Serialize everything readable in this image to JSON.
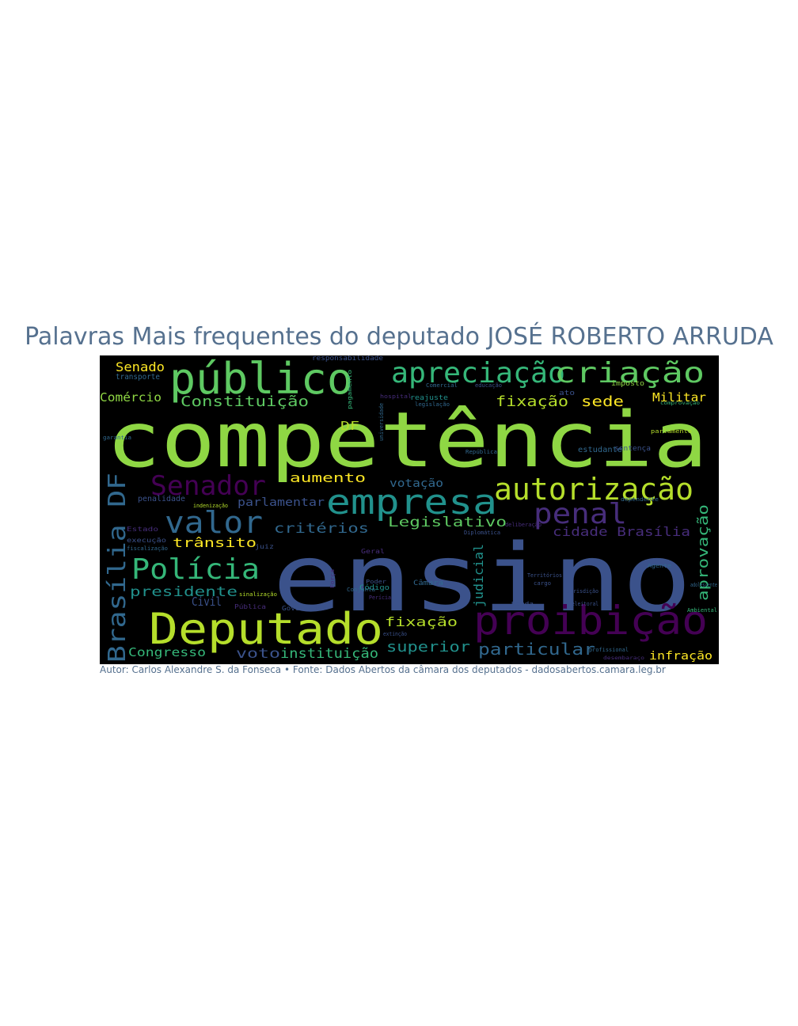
{
  "title": "Palavras Mais frequentes do deputado JOSÉ ROBERTO ARRUDA",
  "footer": "Autor: Carlos Alexandre S. da Fonseca • Fonte: Dados Abertos da câmara dos deputados - dadosabertos.camara.leg.br",
  "colors": {
    "title": "#56718f",
    "background": "#000000",
    "palette": [
      "#8fd744",
      "#b5de2b",
      "#5ec962",
      "#35b779",
      "#21918c",
      "#31688e",
      "#3b528b",
      "#472d7b",
      "#440154",
      "#fde725"
    ]
  },
  "words": [
    {
      "text": "competência",
      "color": "#8fd744"
    },
    {
      "text": "ensino",
      "color": "#3b528b"
    },
    {
      "text": "público",
      "color": "#5ec962"
    },
    {
      "text": "apreciação",
      "color": "#35b779"
    },
    {
      "text": "criação",
      "color": "#5ec962"
    },
    {
      "text": "Deputado",
      "color": "#b5de2b"
    },
    {
      "text": "proibição",
      "color": "#440154"
    },
    {
      "text": "empresa",
      "color": "#21918c"
    },
    {
      "text": "autorização",
      "color": "#b5de2b"
    },
    {
      "text": "valor",
      "color": "#31688e"
    },
    {
      "text": "penal",
      "color": "#472d7b"
    },
    {
      "text": "Polícia",
      "color": "#35b779"
    },
    {
      "text": "Senador",
      "color": "#440154"
    },
    {
      "text": "Brasília DF",
      "color": "#31688e"
    },
    {
      "text": "Senado",
      "color": "#fde725"
    },
    {
      "text": "Comércio",
      "color": "#8fd744"
    },
    {
      "text": "Constituição",
      "color": "#5ec962"
    },
    {
      "text": "DF",
      "color": "#b5de2b"
    },
    {
      "text": "fixação",
      "color": "#b5de2b"
    },
    {
      "text": "sede",
      "color": "#fde725"
    },
    {
      "text": "Militar",
      "color": "#fde725"
    },
    {
      "text": "aumento",
      "color": "#fde725"
    },
    {
      "text": "votação",
      "color": "#31688e"
    },
    {
      "text": "parlamentar",
      "color": "#3b528b"
    },
    {
      "text": "critérios",
      "color": "#31688e"
    },
    {
      "text": "Legislativo",
      "color": "#5ec962"
    },
    {
      "text": "cidade Brasília",
      "color": "#472d7b"
    },
    {
      "text": "trânsito",
      "color": "#fde725"
    },
    {
      "text": "aprovação",
      "color": "#35b779"
    },
    {
      "text": "presidente",
      "color": "#21918c"
    },
    {
      "text": "Civil",
      "color": "#3b528b"
    },
    {
      "text": "fixação",
      "color": "#b5de2b"
    },
    {
      "text": "judicial",
      "color": "#21918c"
    },
    {
      "text": "superior",
      "color": "#21918c"
    },
    {
      "text": "particular",
      "color": "#31688e"
    },
    {
      "text": "Congresso",
      "color": "#35b779"
    },
    {
      "text": "voto",
      "color": "#3b528b"
    },
    {
      "text": "instituição",
      "color": "#35b779"
    },
    {
      "text": "infração",
      "color": "#fde725"
    },
    {
      "text": "penalidade",
      "color": "#3b528b"
    },
    {
      "text": "transporte",
      "color": "#31688e"
    },
    {
      "text": "responsabilidade",
      "color": "#3b528b"
    },
    {
      "text": "reajuste",
      "color": "#21918c"
    },
    {
      "text": "imposto",
      "color": "#8fd744"
    },
    {
      "text": "ato",
      "color": "#3b528b"
    },
    {
      "text": "estudante",
      "color": "#31688e"
    },
    {
      "text": "sentença",
      "color": "#3b528b"
    },
    {
      "text": "execução",
      "color": "#3b528b"
    },
    {
      "text": "fiscalização",
      "color": "#31688e"
    },
    {
      "text": "Código",
      "color": "#21918c"
    },
    {
      "text": "Câmara",
      "color": "#31688e"
    },
    {
      "text": "Governador",
      "color": "#3b528b"
    },
    {
      "text": "Pública",
      "color": "#472d7b"
    },
    {
      "text": "juiz",
      "color": "#3b528b"
    },
    {
      "text": "Geral",
      "color": "#472d7b"
    },
    {
      "text": "Diplomática",
      "color": "#3b528b"
    },
    {
      "text": "Territórios",
      "color": "#3b528b"
    },
    {
      "text": "Agente",
      "color": "#31688e"
    },
    {
      "text": "Ambiental",
      "color": "#35b779"
    },
    {
      "text": "adolescente",
      "color": "#31688e"
    },
    {
      "text": "profissional",
      "color": "#31688e"
    },
    {
      "text": "desembaraço",
      "color": "#472d7b"
    },
    {
      "text": "extinção",
      "color": "#3b528b"
    },
    {
      "text": "garantia",
      "color": "#31688e"
    },
    {
      "text": "Estado",
      "color": "#472d7b"
    },
    {
      "text": "indenização",
      "color": "#b5de2b"
    },
    {
      "text": "Conjunta",
      "color": "#31688e"
    },
    {
      "text": "Renda",
      "color": "#3b528b"
    },
    {
      "text": "cargo",
      "color": "#3b528b"
    },
    {
      "text": "Força",
      "color": "#472d7b"
    },
    {
      "text": "República",
      "color": "#31688e"
    },
    {
      "text": "Comercial",
      "color": "#31688e"
    },
    {
      "text": "educação",
      "color": "#3b528b"
    },
    {
      "text": "hospital",
      "color": "#472d7b"
    },
    {
      "text": "legislação",
      "color": "#31688e"
    },
    {
      "text": "universidade",
      "color": "#31688e"
    },
    {
      "text": "dependente",
      "color": "#31688e"
    },
    {
      "text": "deliberação",
      "color": "#472d7b"
    },
    {
      "text": "parlamento",
      "color": "#b5de2b"
    },
    {
      "text": "Poder",
      "color": "#3b528b"
    },
    {
      "text": "sinalização",
      "color": "#b5de2b"
    },
    {
      "text": "eleitoral",
      "color": "#3b528b"
    },
    {
      "text": "comprovação",
      "color": "#35b779"
    },
    {
      "text": "pagamento",
      "color": "#35b779"
    },
    {
      "text": "Perícia",
      "color": "#472d7b"
    },
    {
      "text": "Jurisdição",
      "color": "#3b528b"
    }
  ]
}
